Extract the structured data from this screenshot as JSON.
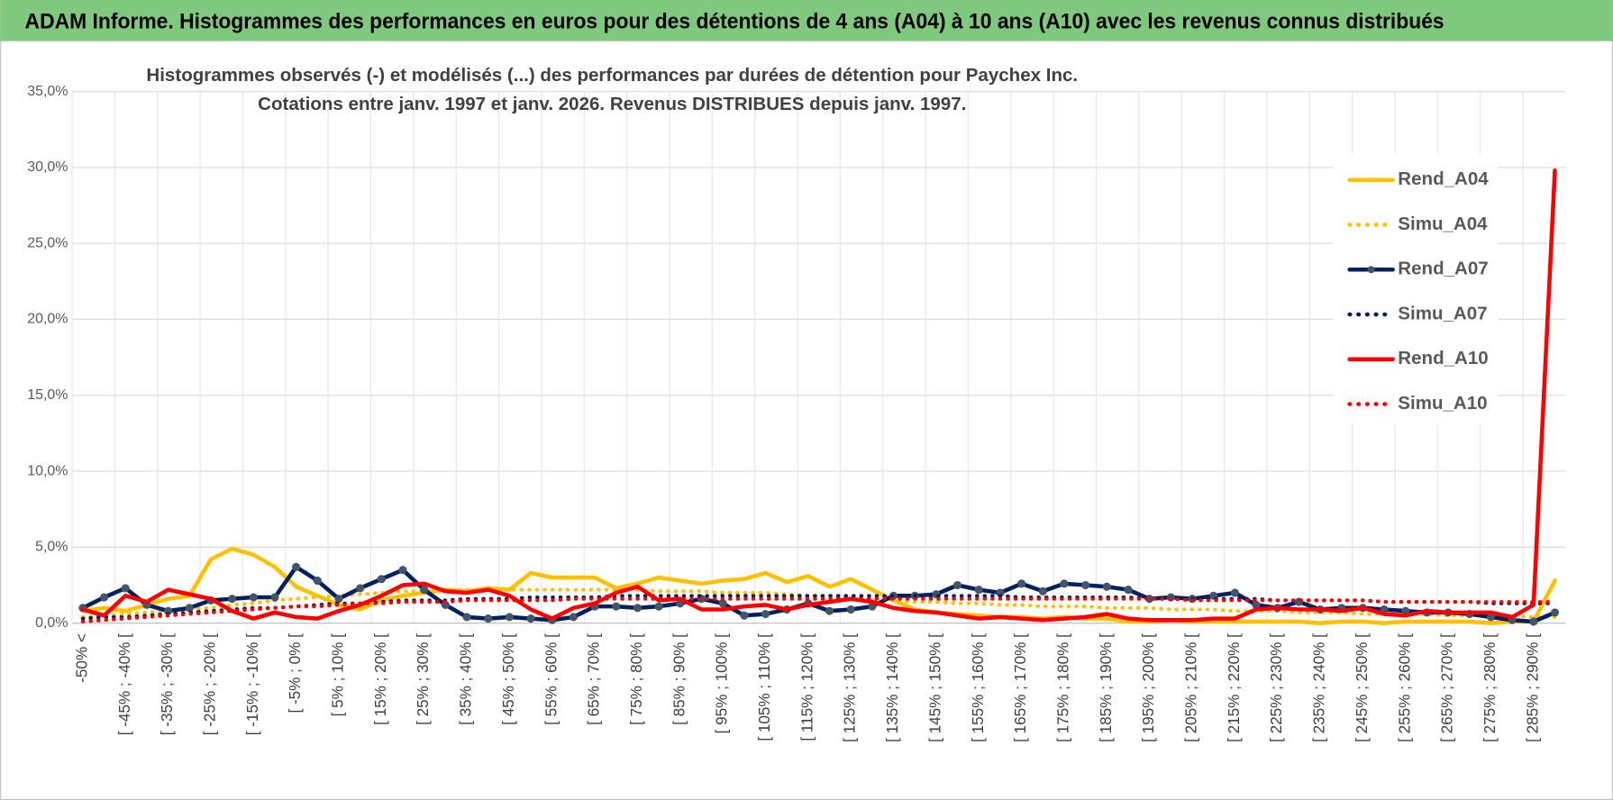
{
  "header": {
    "title": "ADAM Informe. Histogrammes des performances en euros pour des détentions de 4 ans (A04) à 10 ans (A10) avec les revenus connus distribués"
  },
  "chart_data": {
    "type": "line",
    "title": "Histogrammes observés (-) et modélisés (...) des performances par durées de détention pour Paychex Inc.",
    "subtitle": "Cotations entre janv. 1997 et janv. 2026. Revenus DISTRIBUES depuis janv. 1997.",
    "categories": [
      "-50% <",
      null,
      "[ -45% ; -40% [",
      null,
      "[ -35% ; -30% [",
      null,
      "[ -25% ; -20% [",
      null,
      "[ -15% ; -10% [",
      null,
      "[ -5% ; 0% [",
      null,
      "[ 5% ; 10% [",
      null,
      "[ 15% ; 20% [",
      null,
      "[ 25% ; 30% [",
      null,
      "[ 35% ; 40% [",
      null,
      "[ 45% ; 50% [",
      null,
      "[ 55% ; 60% [",
      null,
      "[ 65% ; 70% [",
      null,
      "[ 75% ; 80% [",
      null,
      "[ 85% ; 90% [",
      null,
      "[ 95% ; 100% [",
      null,
      "[ 105% ; 110% [",
      null,
      "[ 115% ; 120% [",
      null,
      "[ 125% ; 130% [",
      null,
      "[ 135% ; 140% [",
      null,
      "[ 145% ; 150% [",
      null,
      "[ 155% ; 160% [",
      null,
      "[ 165% ; 170% [",
      null,
      "[ 175% ; 180% [",
      null,
      "[ 185% ; 190% [",
      null,
      "[ 195% ; 200% [",
      null,
      "[ 205% ; 210% [",
      null,
      "[ 215% ; 220% [",
      null,
      "[ 225% ; 230% [",
      null,
      "[ 235% ; 240% [",
      null,
      "[ 245% ; 250% [",
      null,
      "[ 255% ; 260% [",
      null,
      "[ 265% ; 270% [",
      null,
      "[ 275% ; 280% [",
      null,
      "[ 285% ; 290% [",
      null
    ],
    "series": [
      {
        "name": "Rend_A04",
        "color": "#ffc000",
        "style": "solid",
        "values": [
          0.8,
          1.0,
          0.8,
          1.2,
          1.6,
          1.8,
          4.2,
          4.9,
          4.5,
          3.7,
          2.4,
          1.8,
          1.2,
          0.9,
          1.5,
          1.8,
          2.0,
          2.2,
          2.1,
          2.3,
          2.2,
          3.3,
          3.0,
          3.0,
          3.0,
          2.3,
          2.6,
          3.0,
          2.8,
          2.6,
          2.8,
          2.9,
          3.3,
          2.7,
          3.1,
          2.4,
          2.9,
          2.2,
          1.5,
          0.9,
          0.7,
          0.6,
          0.5,
          0.4,
          0.4,
          0.3,
          0.4,
          0.3,
          0.3,
          0.1,
          0.1,
          0.2,
          0.1,
          0.1,
          0.1,
          0.1,
          0.1,
          0.1,
          0.0,
          0.1,
          0.1,
          0.0,
          0.1,
          0.1,
          0.1,
          0.1,
          0.0,
          0.1,
          0.1,
          2.8
        ]
      },
      {
        "name": "Simu_A04",
        "color": "#ffc000",
        "style": "dotted",
        "values": [
          0.4,
          0.5,
          0.6,
          0.7,
          0.8,
          0.9,
          1.0,
          1.2,
          1.3,
          1.5,
          1.6,
          1.7,
          1.8,
          1.9,
          2.0,
          2.1,
          2.1,
          2.2,
          2.2,
          2.2,
          2.2,
          2.2,
          2.2,
          2.2,
          2.2,
          2.2,
          2.2,
          2.1,
          2.1,
          2.1,
          2.0,
          2.0,
          2.0,
          1.9,
          1.8,
          1.8,
          1.7,
          1.6,
          1.5,
          1.4,
          1.4,
          1.3,
          1.3,
          1.2,
          1.2,
          1.1,
          1.1,
          1.1,
          1.0,
          1.0,
          1.0,
          0.9,
          0.9,
          0.9,
          0.8,
          0.8,
          0.8,
          0.7,
          0.7,
          0.7,
          0.6,
          0.6,
          0.6,
          0.6,
          0.5,
          0.5,
          0.5,
          0.5,
          0.4,
          0.4
        ]
      },
      {
        "name": "Rend_A07",
        "color": "#002060",
        "style": "solid",
        "marker": true,
        "values": [
          1.0,
          1.7,
          2.3,
          1.2,
          0.8,
          1.0,
          1.5,
          1.6,
          1.7,
          1.7,
          3.7,
          2.8,
          1.6,
          2.3,
          2.9,
          3.5,
          2.2,
          1.2,
          0.4,
          0.3,
          0.4,
          0.3,
          0.2,
          0.4,
          1.1,
          1.1,
          1.0,
          1.1,
          1.3,
          1.6,
          1.3,
          0.5,
          0.6,
          0.9,
          1.3,
          0.8,
          0.9,
          1.1,
          1.8,
          1.8,
          1.9,
          2.5,
          2.2,
          2.0,
          2.6,
          2.1,
          2.6,
          2.5,
          2.4,
          2.2,
          1.6,
          1.7,
          1.6,
          1.8,
          2.0,
          1.2,
          1.0,
          1.4,
          0.9,
          1.0,
          1.0,
          0.9,
          0.8,
          0.7,
          0.7,
          0.6,
          0.4,
          0.2,
          0.1,
          0.7
        ]
      },
      {
        "name": "Simu_A07",
        "color": "#002060",
        "style": "dotted",
        "values": [
          0.3,
          0.4,
          0.4,
          0.5,
          0.6,
          0.7,
          0.8,
          0.9,
          1.0,
          1.0,
          1.1,
          1.2,
          1.3,
          1.3,
          1.4,
          1.5,
          1.5,
          1.5,
          1.6,
          1.6,
          1.6,
          1.7,
          1.7,
          1.7,
          1.7,
          1.8,
          1.8,
          1.8,
          1.8,
          1.8,
          1.8,
          1.8,
          1.8,
          1.8,
          1.8,
          1.8,
          1.8,
          1.8,
          1.8,
          1.8,
          1.8,
          1.8,
          1.8,
          1.8,
          1.7,
          1.7,
          1.7,
          1.7,
          1.7,
          1.7,
          1.6,
          1.6,
          1.6,
          1.6,
          1.6,
          1.6,
          1.5,
          1.5,
          1.5,
          1.5,
          1.5,
          1.4,
          1.4,
          1.4,
          1.4,
          1.4,
          1.3,
          1.3,
          1.3,
          1.3
        ]
      },
      {
        "name": "Rend_A10",
        "color": "#ff0000",
        "style": "solid",
        "values": [
          0.9,
          0.5,
          1.8,
          1.4,
          2.2,
          1.9,
          1.6,
          0.8,
          0.3,
          0.7,
          0.4,
          0.3,
          0.8,
          1.2,
          1.8,
          2.5,
          2.6,
          2.1,
          2.0,
          2.2,
          1.8,
          0.9,
          0.3,
          1.0,
          1.3,
          2.0,
          2.4,
          1.5,
          1.6,
          0.9,
          0.9,
          1.1,
          1.2,
          0.9,
          1.2,
          1.4,
          1.6,
          1.4,
          1.0,
          0.8,
          0.7,
          0.5,
          0.3,
          0.4,
          0.3,
          0.2,
          0.3,
          0.4,
          0.6,
          0.3,
          0.2,
          0.2,
          0.2,
          0.3,
          0.3,
          0.9,
          1.0,
          0.9,
          0.9,
          0.8,
          1.0,
          0.6,
          0.5,
          0.8,
          0.7,
          0.7,
          0.7,
          0.4,
          1.2,
          29.8
        ]
      },
      {
        "name": "Simu_A10",
        "color": "#ff0000",
        "style": "dotted",
        "values": [
          0.1,
          0.2,
          0.3,
          0.4,
          0.5,
          0.6,
          0.7,
          0.8,
          0.9,
          1.0,
          1.1,
          1.1,
          1.2,
          1.3,
          1.3,
          1.4,
          1.4,
          1.4,
          1.5,
          1.5,
          1.5,
          1.5,
          1.5,
          1.6,
          1.6,
          1.6,
          1.6,
          1.6,
          1.6,
          1.6,
          1.6,
          1.6,
          1.6,
          1.6,
          1.6,
          1.6,
          1.6,
          1.6,
          1.6,
          1.6,
          1.6,
          1.6,
          1.6,
          1.6,
          1.6,
          1.6,
          1.6,
          1.6,
          1.6,
          1.6,
          1.6,
          1.6,
          1.5,
          1.5,
          1.5,
          1.5,
          1.5,
          1.5,
          1.5,
          1.5,
          1.5,
          1.4,
          1.4,
          1.4,
          1.4,
          1.4,
          1.4,
          1.4,
          1.4,
          1.4
        ]
      }
    ],
    "ylim": [
      0,
      35
    ],
    "yticks": [
      {
        "value": 0,
        "label": "0,0%"
      },
      {
        "value": 5,
        "label": "5,0%"
      },
      {
        "value": 10,
        "label": "10,0%"
      },
      {
        "value": 15,
        "label": "15,0%"
      },
      {
        "value": 20,
        "label": "20,0%"
      },
      {
        "value": 25,
        "label": "25,0%"
      },
      {
        "value": 30,
        "label": "30,0%"
      },
      {
        "value": 35,
        "label": "35,0%"
      }
    ],
    "grid": true,
    "legend": "right"
  }
}
